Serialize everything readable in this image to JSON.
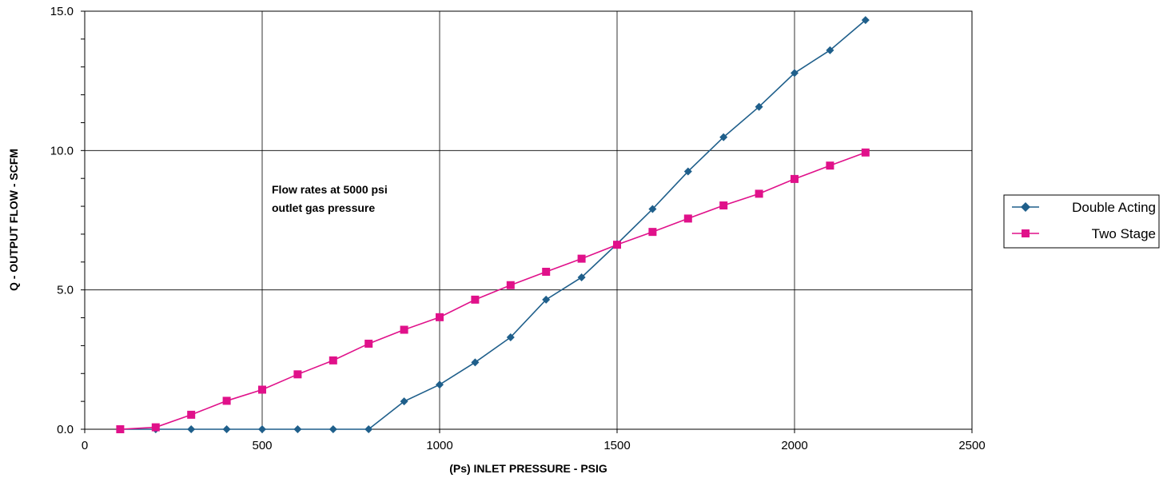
{
  "chart_data": {
    "type": "line",
    "xlabel": "(Ps) INLET PRESSURE - PSIG",
    "ylabel": "Q - OUTPUT FLOW - SCFM",
    "xlim": [
      0,
      2500
    ],
    "ylim": [
      0,
      15
    ],
    "x_ticks": [
      "0",
      "500",
      "1000",
      "1500",
      "2000",
      "2500"
    ],
    "y_ticks": [
      "0.0",
      "5.0",
      "10.0",
      "15.0"
    ],
    "grid": true,
    "legend_position": "right",
    "annotation": [
      "Flow rates at 5000 psi",
      "outlet gas pressure"
    ],
    "series": [
      {
        "name": "Double Acting",
        "color": "#1f5f8b",
        "marker": "diamond",
        "x": [
          100,
          200,
          300,
          400,
          500,
          600,
          700,
          800,
          900,
          1000,
          1100,
          1200,
          1300,
          1400,
          1500,
          1600,
          1700,
          1800,
          1900,
          2000,
          2100,
          2200
        ],
        "values": [
          0.0,
          0.0,
          0.0,
          0.0,
          0.0,
          0.0,
          0.0,
          0.0,
          1.0,
          1.6,
          2.4,
          3.3,
          4.65,
          5.45,
          6.65,
          7.9,
          9.25,
          10.48,
          11.57,
          12.78,
          13.6,
          14.68
        ]
      },
      {
        "name": "Two Stage",
        "color": "#e0118a",
        "marker": "square",
        "x": [
          100,
          200,
          300,
          400,
          500,
          600,
          700,
          800,
          900,
          1000,
          1100,
          1200,
          1300,
          1400,
          1500,
          1600,
          1700,
          1800,
          1900,
          2000,
          2100,
          2200
        ],
        "values": [
          0.0,
          0.07,
          0.52,
          1.02,
          1.42,
          1.97,
          2.47,
          3.07,
          3.57,
          4.02,
          4.65,
          5.17,
          5.65,
          6.12,
          6.62,
          7.08,
          7.56,
          8.03,
          8.45,
          8.98,
          9.46,
          9.93
        ]
      }
    ]
  }
}
